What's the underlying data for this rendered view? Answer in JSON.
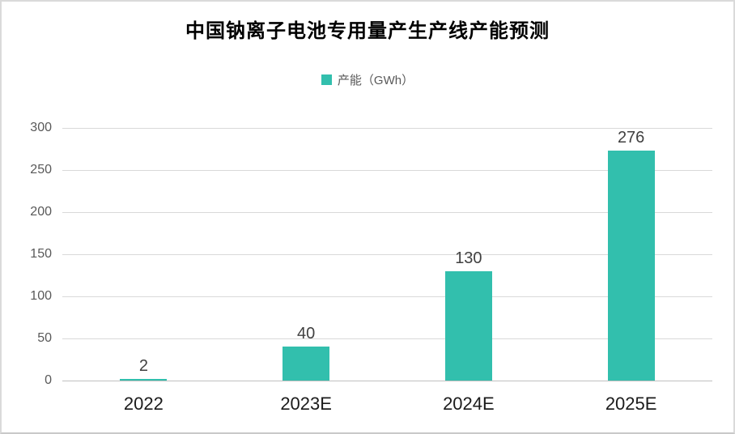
{
  "chart_data": {
    "type": "bar",
    "title": "中国钠离子电池专用量产生产线产能预测",
    "categories": [
      "2022",
      "2023E",
      "2024E",
      "2025E"
    ],
    "series": [
      {
        "name": "产能（GWh）",
        "values": [
          2,
          40,
          130,
          276
        ]
      }
    ],
    "values": [
      2,
      40,
      130,
      276
    ],
    "value_labels": [
      "2",
      "40",
      "130",
      "276"
    ],
    "yticks": [
      "300",
      "250",
      "200",
      "150",
      "100",
      "50",
      "0"
    ],
    "ylim": [
      0,
      300
    ],
    "xlabel": "",
    "ylabel": "",
    "grid": "horizontal",
    "legend_position": "top-center",
    "colors": {
      "bar": "#32bfad",
      "gridline": "#d9d9d9",
      "axis_line": "#bfbfbf",
      "tick_text": "#595959",
      "value_text": "#404040",
      "category_text": "#1b1b1b",
      "title_text": "#000000"
    }
  }
}
